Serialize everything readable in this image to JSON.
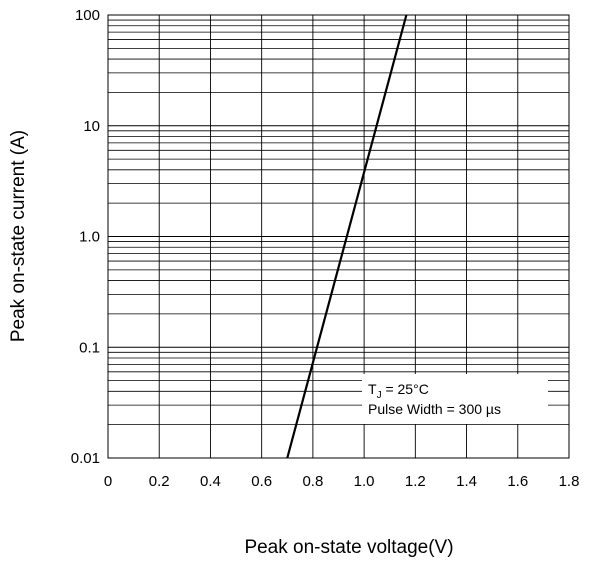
{
  "chart_data": {
    "type": "line",
    "title": "",
    "xlabel": "Peak on-state voltage(V)",
    "ylabel": "Peak on-state current (A)",
    "x_scale": "linear",
    "y_scale": "log",
    "xlim": [
      0,
      1.8
    ],
    "ylim": [
      0.01,
      100
    ],
    "x_ticks": [
      0,
      0.2,
      0.4,
      0.6,
      0.8,
      1.0,
      1.2,
      1.4,
      1.6,
      1.8
    ],
    "x_tick_labels": [
      "0",
      "0.2",
      "0.4",
      "0.6",
      "0.8",
      "1.0",
      "1.2",
      "1.4",
      "1.6",
      "1.8"
    ],
    "y_ticks": [
      0.01,
      0.1,
      1.0,
      10,
      100
    ],
    "y_tick_labels": [
      "0.01",
      "0.1",
      "1.0",
      "10",
      "100"
    ],
    "grid": true,
    "series": [
      {
        "color": "#000000",
        "x": [
          0.7,
          1.165
        ],
        "y": [
          0.01,
          100
        ]
      }
    ],
    "annotation": {
      "tj_main": "T",
      "tj_sub": "J",
      "tj_rest": " = 25°C",
      "pulse": "Pulse Width = 300 µs",
      "placement": "lower-right"
    }
  }
}
